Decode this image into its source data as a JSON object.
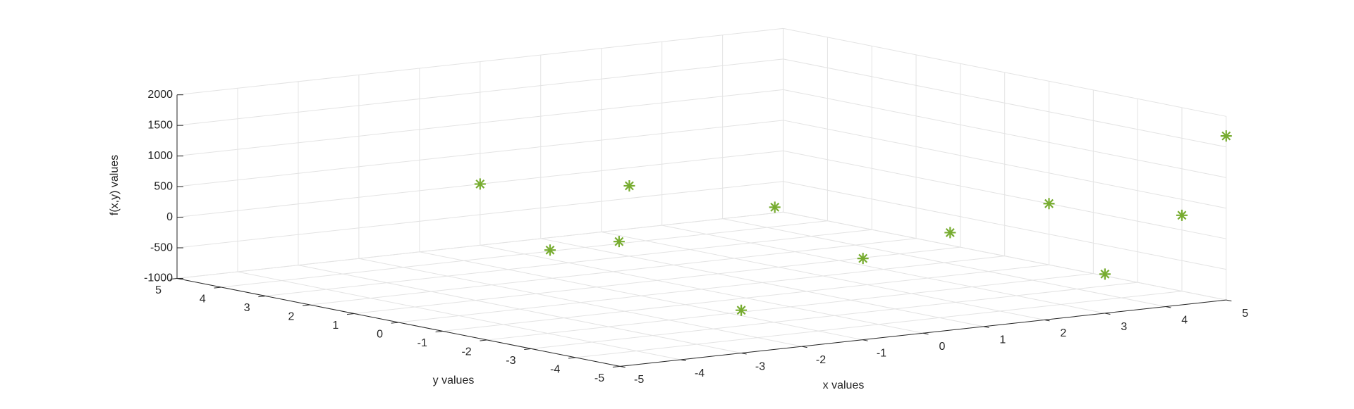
{
  "chart_data": {
    "type": "scatter3d",
    "xlabel": "x values",
    "ylabel": "y values",
    "zlabel": "f(x,y) values",
    "xlim": [
      -5,
      5
    ],
    "ylim": [
      -5,
      5
    ],
    "zlim": [
      -1000,
      2000
    ],
    "xticks": [
      -5,
      -4,
      -3,
      -2,
      -1,
      0,
      1,
      2,
      3,
      4,
      5
    ],
    "yticks": [
      -5,
      -4,
      -3,
      -2,
      -1,
      0,
      1,
      2,
      3,
      4,
      5
    ],
    "zticks": [
      -1000,
      -500,
      0,
      500,
      1000,
      1500,
      2000
    ],
    "grid": true,
    "series": [
      {
        "color": "#77ac30",
        "marker": "*",
        "x": [
          0,
          5,
          -3,
          3,
          5,
          1,
          -2.5,
          1.2,
          5,
          3.4,
          4.1,
          0.1
        ],
        "y": [
          5,
          -5,
          -5,
          -5,
          -1,
          3,
          0,
          -2,
          -4,
          3,
          0,
          2
        ],
        "z": [
          0,
          1680,
          -300,
          -360,
          0,
          150,
          -90,
          -340,
          240,
          -460,
          -520,
          -520
        ]
      }
    ]
  }
}
